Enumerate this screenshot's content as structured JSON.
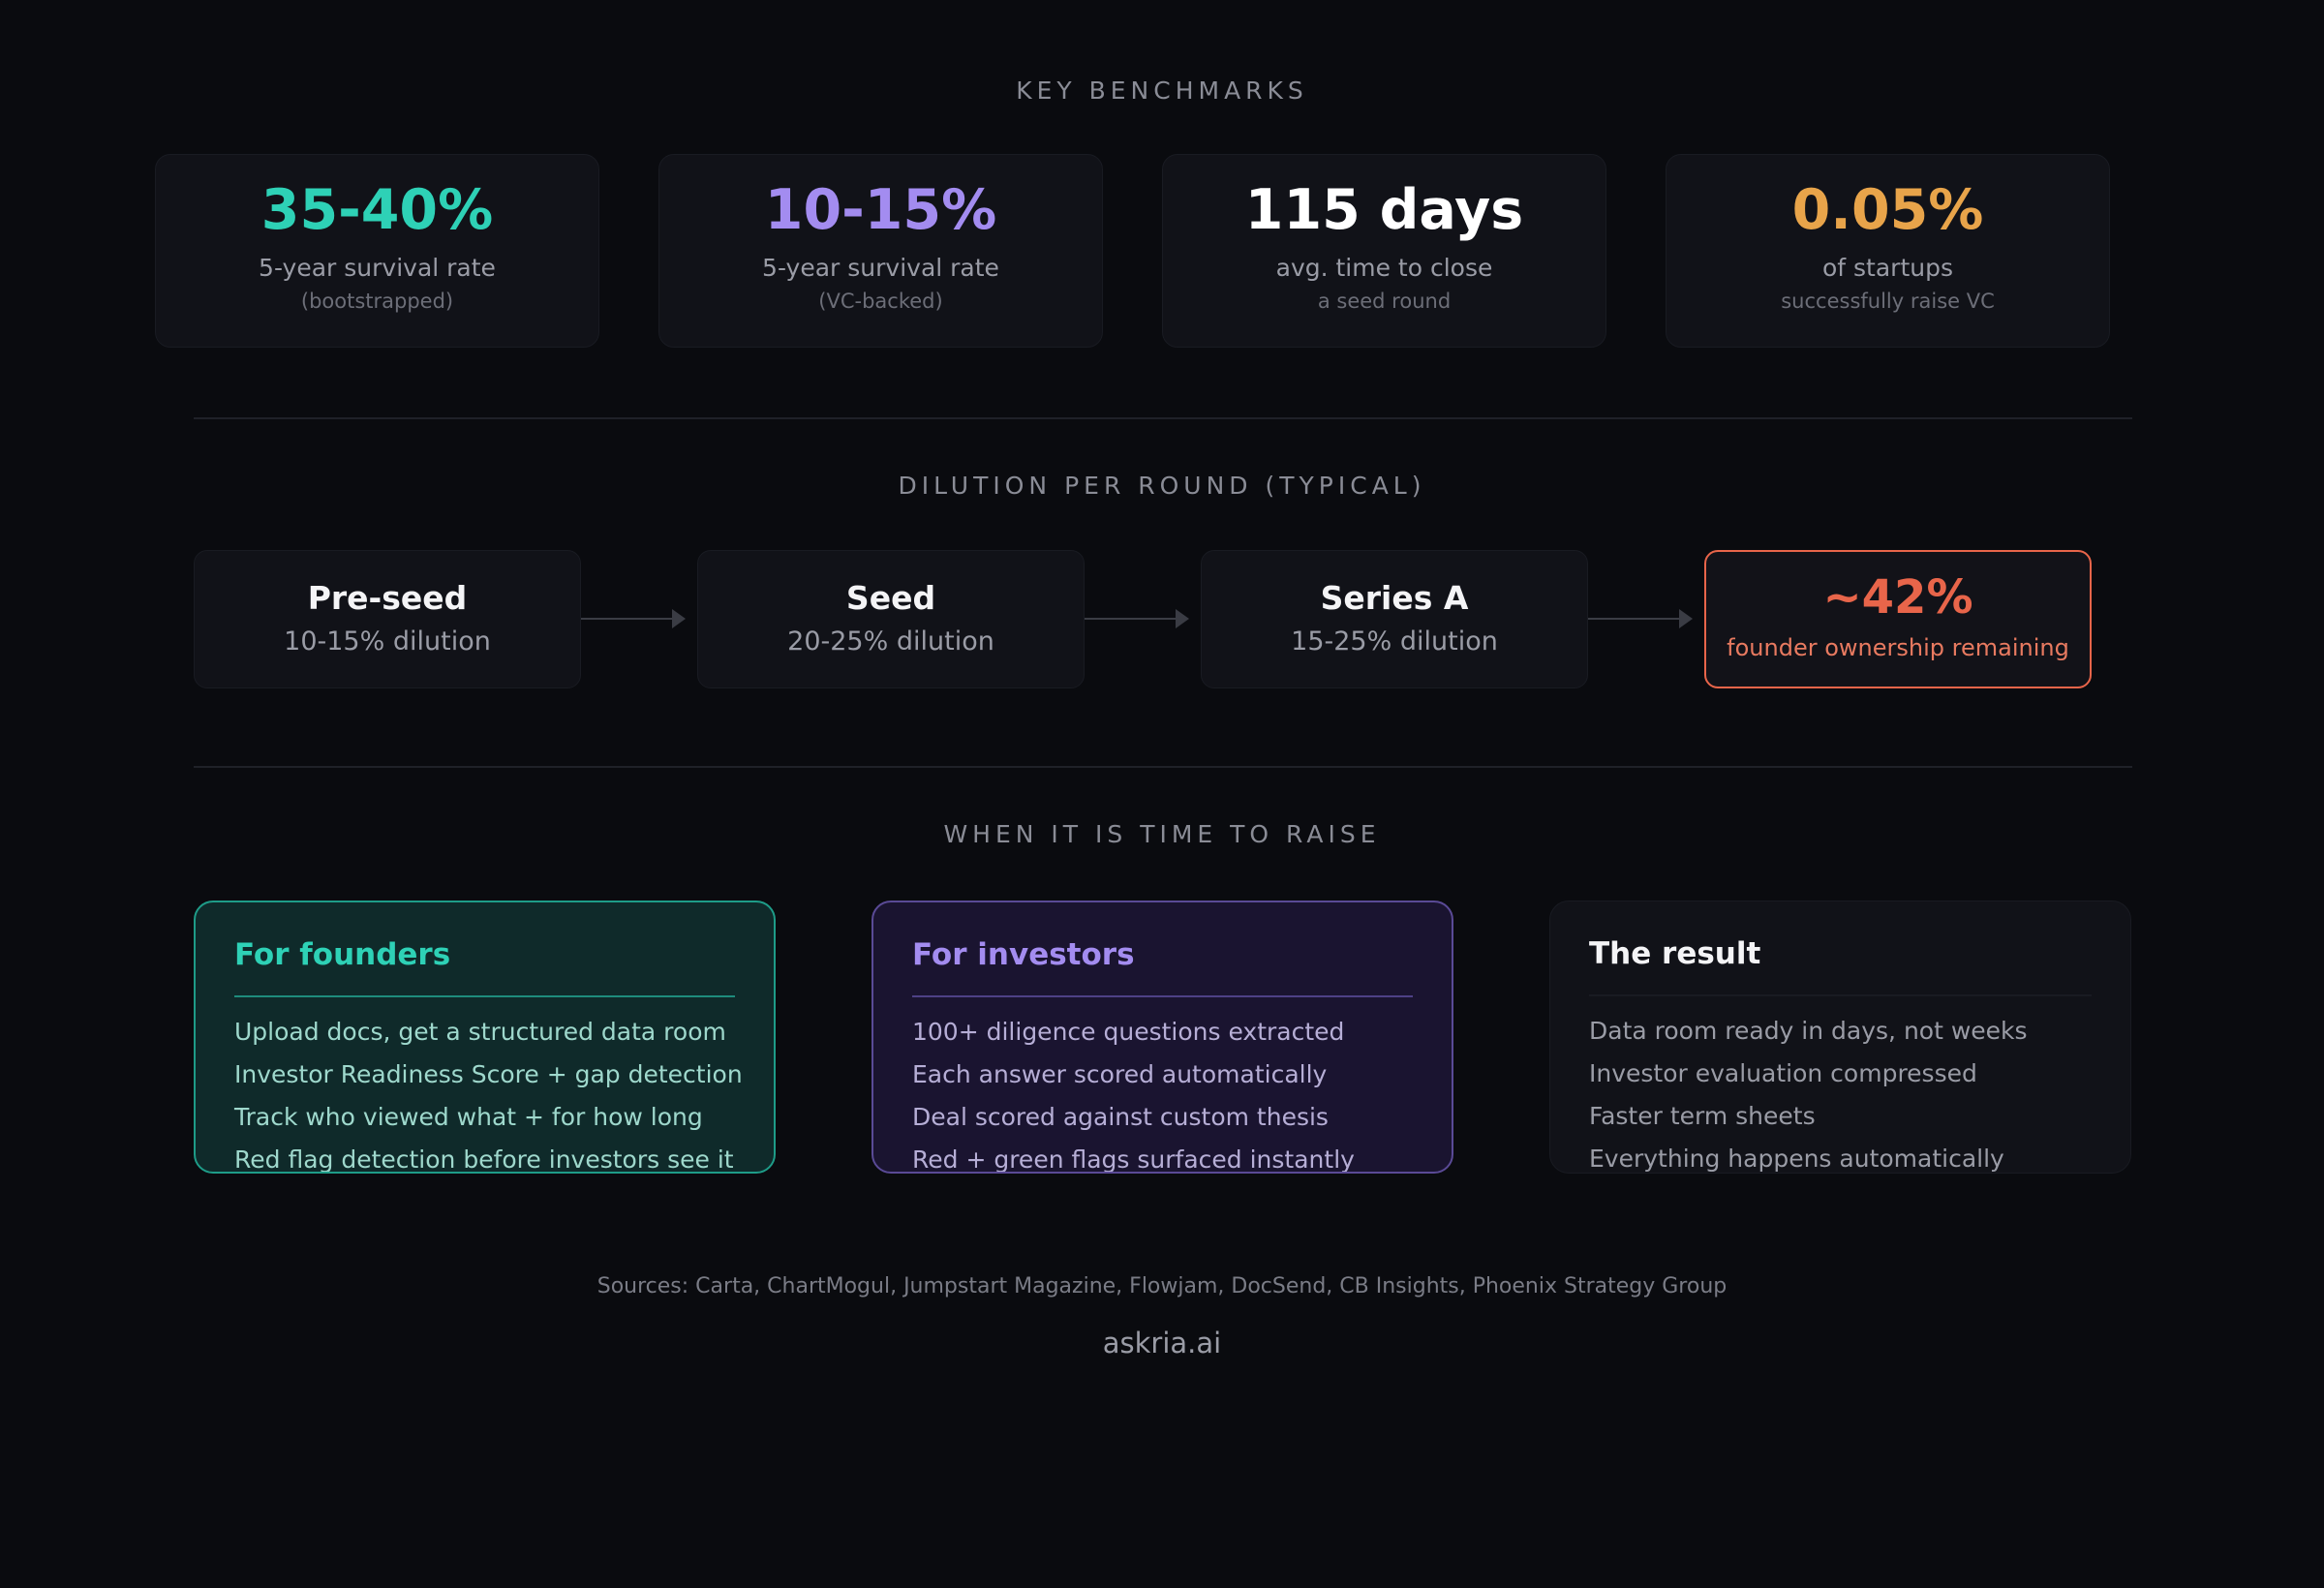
{
  "benchmarks": {
    "title": "KEY BENCHMARKS",
    "cards": [
      {
        "value": "35-40%",
        "label": "5-year survival rate",
        "sub": "(bootstrapped)",
        "color": "#2ed1b6"
      },
      {
        "value": "10-15%",
        "label": "5-year survival rate",
        "sub": "(VC-backed)",
        "color": "#a38cf0"
      },
      {
        "value": "115 days",
        "label": "avg. time to close",
        "sub": "a seed round",
        "color": "#ffffff"
      },
      {
        "value": "0.05%",
        "label": "of startups",
        "sub": "successfully raise VC",
        "color": "#e8a44a"
      }
    ]
  },
  "dilution": {
    "title": "DILUTION PER ROUND (TYPICAL)",
    "rounds": [
      {
        "name": "Pre-seed",
        "dilution": "10-15% dilution"
      },
      {
        "name": "Seed",
        "dilution": "20-25% dilution"
      },
      {
        "name": "Series A",
        "dilution": "15-25% dilution"
      }
    ],
    "result": {
      "value": "~42%",
      "label": "founder ownership remaining",
      "color": "#e8654a"
    }
  },
  "raise": {
    "title": "WHEN IT IS TIME TO RAISE",
    "founders": {
      "title": "For founders",
      "items": [
        "Upload docs, get a structured data room",
        "Investor Readiness Score + gap detection",
        "Track who viewed what + for how long",
        "Red flag detection before investors see it"
      ]
    },
    "investors": {
      "title": "For investors",
      "items": [
        "100+ diligence questions extracted",
        "Each answer scored automatically",
        "Deal scored against custom thesis",
        "Red + green flags surfaced instantly"
      ]
    },
    "result": {
      "title": "The result",
      "items": [
        "Data room ready in days, not weeks",
        "Investor evaluation compressed",
        "Faster term sheets",
        "Everything happens automatically"
      ]
    }
  },
  "footer": {
    "sources": "Sources: Carta, ChartMogul, Jumpstart Magazine, Flowjam, DocSend, CB Insights, Phoenix Strategy Group",
    "brand": "askria.ai"
  }
}
